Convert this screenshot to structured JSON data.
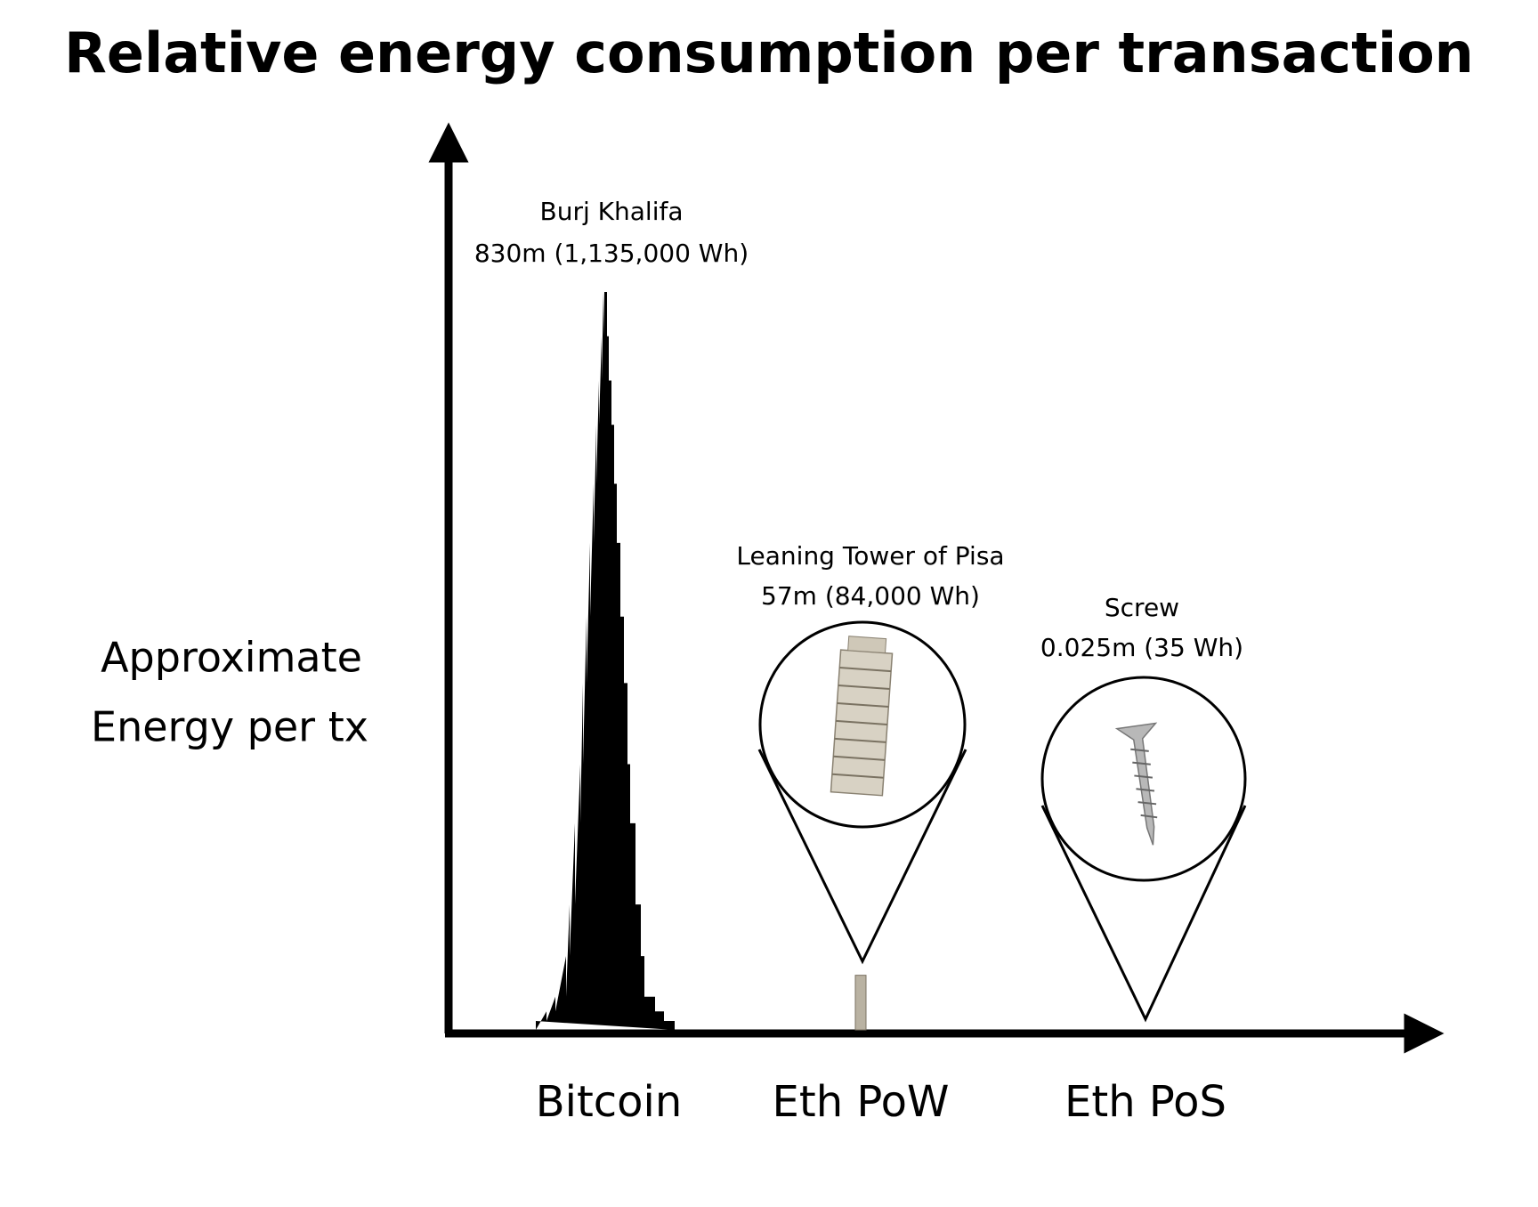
{
  "chart_data": {
    "type": "bar",
    "title": "Relative energy consumption per transaction",
    "ylabel": [
      "Approximate",
      "Energy per tx"
    ],
    "categories": [
      "Bitcoin",
      "Eth PoW",
      "Eth PoS"
    ],
    "objects": [
      "Burj Khalifa",
      "Leaning Tower of Pisa",
      "Screw"
    ],
    "values": [
      1135000,
      84000,
      35
    ],
    "value_labels": [
      "830m (1,135,000 Wh)",
      "57m (84,000 Wh)",
      "0.025m (35 Wh)"
    ],
    "color": "#000000"
  }
}
